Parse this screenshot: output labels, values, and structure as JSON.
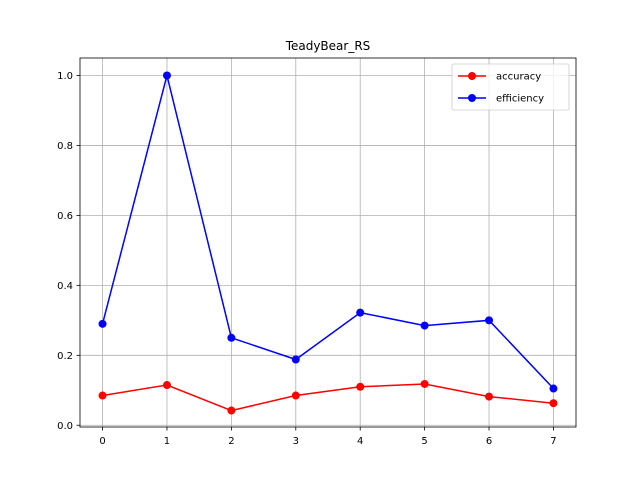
{
  "chart_data": {
    "type": "line",
    "title": "TeadyBear_RS",
    "xlabel": "",
    "ylabel": "",
    "x": [
      0,
      1,
      2,
      3,
      4,
      5,
      6,
      7
    ],
    "xlim": [
      -0.35,
      7.35
    ],
    "ylim": [
      -0.005,
      1.05
    ],
    "xticks": [
      "0",
      "1",
      "2",
      "3",
      "4",
      "5",
      "6",
      "7"
    ],
    "yticks": [
      "0.0",
      "0.2",
      "0.4",
      "0.6",
      "0.8",
      "1.0"
    ],
    "grid": true,
    "legend_position": "top-right",
    "series": [
      {
        "name": "accuracy",
        "color": "#ff0000",
        "marker": "circle",
        "values": [
          0.085,
          0.115,
          0.042,
          0.085,
          0.11,
          0.118,
          0.082,
          0.063
        ]
      },
      {
        "name": "efficiency",
        "color": "#0000ff",
        "marker": "circle",
        "values": [
          0.29,
          1.0,
          0.25,
          0.188,
          0.322,
          0.285,
          0.3,
          0.105
        ]
      }
    ]
  }
}
